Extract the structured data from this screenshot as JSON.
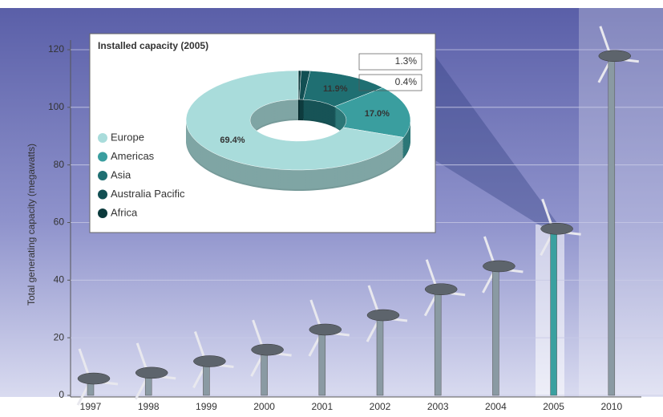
{
  "chart_data": [
    {
      "type": "turbine-bar",
      "y_label": "Total generating capacity (megawatts)",
      "categories": [
        "1997",
        "1998",
        "1999",
        "2000",
        "2001",
        "2002",
        "2003",
        "2004",
        "2005",
        "2010"
      ],
      "values": [
        5,
        7,
        11,
        15,
        22,
        27,
        36,
        44,
        57,
        117
      ],
      "ylim": [
        0,
        120
      ],
      "yticks": [
        0,
        20,
        40,
        60,
        80,
        100,
        120
      ],
      "grid": true,
      "color": "#8a9aa3",
      "highlight_color": "#3aa0a0"
    },
    {
      "type": "donut",
      "title": "Installed capacity (2005)",
      "categories": [
        "Europe",
        "Americas",
        "Asia",
        "Australia Pacific",
        "Africa"
      ],
      "values": [
        69.4,
        17.0,
        11.9,
        1.3,
        0.4
      ],
      "value_labels": [
        "69.4%",
        "17.0%",
        "11.9%",
        "1.3%",
        "0.4%"
      ],
      "colors": [
        "#a9dcdb",
        "#3a9e9f",
        "#1f6f72",
        "#124f53",
        "#0b3a3c"
      ]
    }
  ]
}
